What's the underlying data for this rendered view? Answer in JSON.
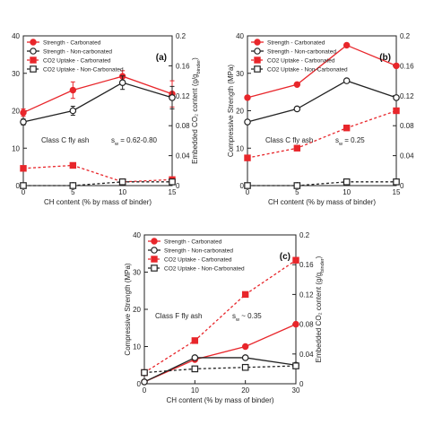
{
  "chart_data": [
    {
      "type": "line",
      "panel_label": "(a)",
      "x": [
        0,
        5,
        10,
        15
      ],
      "xticks": [
        "0",
        "5",
        "10",
        "15"
      ],
      "xlabel": "CH content (% by mass of binder)",
      "ylabel_left": "",
      "ylabel_right": "Embedded CO₂ content (g/g_binder)",
      "ylim_left": [
        0,
        40
      ],
      "ylim_right": [
        0,
        0.2
      ],
      "yticks_left": [
        "0",
        "10",
        "20",
        "30",
        "40"
      ],
      "yticks_right": [
        "0",
        "0.04",
        "0.08",
        "0.12",
        "0.16",
        "0.2"
      ],
      "legend_position": "top-left",
      "annotations": [
        "Class C fly ash",
        "s_w = 0.62-0.80"
      ],
      "series": [
        {
          "name": "Strength - Carbonated",
          "axis": "left",
          "style": "solid",
          "marker": "filled-circle",
          "color": "#e8262b",
          "values": [
            19.5,
            25.5,
            29.2,
            24.5
          ],
          "errors": [
            1.0,
            2.2,
            1.5,
            3.5
          ]
        },
        {
          "name": "Strength - Non-carbonated",
          "axis": "left",
          "style": "solid",
          "marker": "open-circle",
          "color": "#222222",
          "values": [
            17.0,
            20.0,
            27.5,
            23.5
          ],
          "errors": [
            0.8,
            1.2,
            1.8,
            3.0
          ]
        },
        {
          "name": "CO2 Uptake - Carbonated",
          "axis": "right",
          "style": "dashed",
          "marker": "filled-square",
          "color": "#e8262b",
          "values": [
            0.023,
            0.027,
            0.005,
            0.008
          ]
        },
        {
          "name": "CO2 Uptake - Non-Carbonated",
          "axis": "right",
          "style": "dashed",
          "marker": "open-square",
          "color": "#222222",
          "values": [
            0.0,
            0.0,
            0.005,
            0.005
          ]
        }
      ]
    },
    {
      "type": "line",
      "panel_label": "(b)",
      "x": [
        0,
        5,
        10,
        15
      ],
      "xticks": [
        "0",
        "5",
        "10",
        "15"
      ],
      "xlabel": "CH content (% by mass of binder)",
      "ylabel_left": "Compressive Strength (MPa)",
      "ylabel_right": "",
      "ylim_left": [
        0,
        40
      ],
      "ylim_right": [
        0,
        0.2
      ],
      "yticks_left": [
        "0",
        "10",
        "20",
        "30",
        "40"
      ],
      "yticks_right": [
        "0",
        "0.04",
        "0.08",
        "0.12",
        "0.16",
        "0.2"
      ],
      "legend_position": "top-left",
      "annotations": [
        "Class C fly ash",
        "s_w = 0.25"
      ],
      "series": [
        {
          "name": "Strength - Carbonated",
          "axis": "left",
          "style": "solid",
          "marker": "filled-circle",
          "color": "#e8262b",
          "values": [
            23.5,
            27.0,
            37.5,
            32.0
          ]
        },
        {
          "name": "Strength - Non-carbonated",
          "axis": "left",
          "style": "solid",
          "marker": "open-circle",
          "color": "#222222",
          "values": [
            17.0,
            20.5,
            28.0,
            23.5
          ]
        },
        {
          "name": "CO2 Uptake - Carbonated",
          "axis": "right",
          "style": "dashed",
          "marker": "filled-square",
          "color": "#e8262b",
          "values": [
            0.037,
            0.05,
            0.077,
            0.1
          ]
        },
        {
          "name": "CO2 Uptake - Non-Carbonated",
          "axis": "right",
          "style": "dashed",
          "marker": "open-square",
          "color": "#222222",
          "values": [
            0.0,
            0.0,
            0.005,
            0.005
          ]
        }
      ]
    },
    {
      "type": "line",
      "panel_label": "(c)",
      "x": [
        0,
        10,
        20,
        30
      ],
      "xticks": [
        "0",
        "10",
        "20",
        "30"
      ],
      "xlabel": "CH content (% by mass of binder)",
      "ylabel_left": "Compressive Strength (MPa)",
      "ylabel_right": "Embedded CO₂ content (g/g_binder)",
      "ylim_left": [
        0,
        40
      ],
      "ylim_right": [
        0,
        0.2
      ],
      "yticks_left": [
        "0",
        "10",
        "20",
        "30",
        "40"
      ],
      "yticks_right": [
        "0",
        "0.04",
        "0.08",
        "0.12",
        "0.16",
        "0.2"
      ],
      "legend_position": "top-left",
      "annotations": [
        "Class F fly ash",
        "s_w ~ 0.35"
      ],
      "series": [
        {
          "name": "Strength - Carbonated",
          "axis": "left",
          "style": "solid",
          "marker": "filled-circle",
          "color": "#e8262b",
          "values": [
            0.5,
            6.5,
            10.0,
            16.0
          ]
        },
        {
          "name": "Strength - Non-carbonated",
          "axis": "left",
          "style": "solid",
          "marker": "open-circle",
          "color": "#222222",
          "values": [
            0.5,
            7.0,
            7.0,
            5.0
          ]
        },
        {
          "name": "CO2 Uptake - Carbonated",
          "axis": "right",
          "style": "dashed",
          "marker": "filled-square",
          "color": "#e8262b",
          "values": [
            0.015,
            0.058,
            0.12,
            0.166
          ]
        },
        {
          "name": "CO2 Uptake - Non-Carbonated",
          "axis": "right",
          "style": "dashed",
          "marker": "open-square",
          "color": "#222222",
          "values": [
            0.015,
            0.02,
            0.022,
            0.024
          ]
        }
      ]
    }
  ]
}
